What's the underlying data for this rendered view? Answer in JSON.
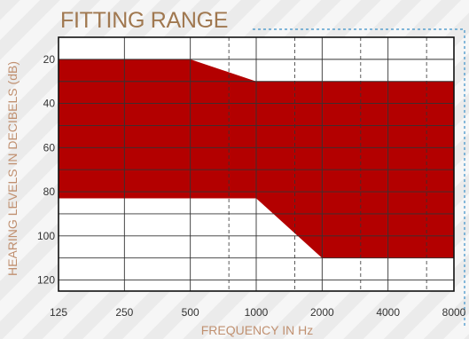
{
  "colors": {
    "band": "#b30000",
    "title": "#a07850",
    "axis_label": "#c09070",
    "grid": "#333333",
    "frame": "#111111",
    "dashed_frame": "#3a8fc8"
  },
  "chart_data": {
    "type": "area",
    "title": "FITTING RANGE",
    "xlabel": "FREQUENCY IN Hz",
    "ylabel": "HEARING LEVELS IN DECIBELS (dB)",
    "x_scale": "log2",
    "x_ticks": [
      125,
      250,
      500,
      1000,
      2000,
      4000,
      8000
    ],
    "x_tick_labels": [
      "125",
      "250",
      "500",
      "1000",
      "2000",
      "4000",
      "8000"
    ],
    "x_dashed_gridlines": [
      750,
      1500,
      3000,
      6000
    ],
    "y_ticks": [
      20,
      40,
      60,
      80,
      100,
      120
    ],
    "y_tick_labels": [
      "20",
      "40",
      "60",
      "80",
      "100",
      "120"
    ],
    "y_range": [
      10,
      125
    ],
    "y_inverted": true,
    "grid": true,
    "fitting_range": {
      "upper_boundary": [
        {
          "x": 125,
          "y": 20
        },
        {
          "x": 500,
          "y": 20
        },
        {
          "x": 1000,
          "y": 30
        },
        {
          "x": 8000,
          "y": 30
        }
      ],
      "lower_boundary": [
        {
          "x": 125,
          "y": 83
        },
        {
          "x": 1000,
          "y": 83
        },
        {
          "x": 2000,
          "y": 110
        },
        {
          "x": 8000,
          "y": 110
        }
      ]
    }
  }
}
